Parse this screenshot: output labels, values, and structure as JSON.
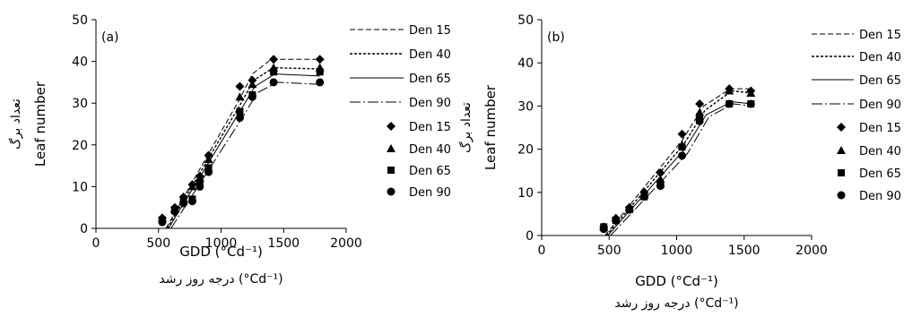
{
  "chart_data": [
    {
      "type": "scatter",
      "panel_label": "(a)",
      "xlabel": "GDD (°Cd⁻¹)",
      "xlabel_fa": "درجه روز رشد (°Cd⁻¹)",
      "ylabel": "Leaf number",
      "ylabel_fa": "تعداد برگ",
      "xlim": [
        0,
        2000
      ],
      "ylim": [
        0,
        50
      ],
      "xticks": [
        "0",
        "500",
        "1000",
        "1500",
        "2000"
      ],
      "yticks": [
        "0",
        "10",
        "20",
        "30",
        "40",
        "50"
      ],
      "grid": false,
      "legend": "right",
      "series": [
        {
          "name": "Den 15",
          "marker": "diamond",
          "x": [
            530,
            630,
            700,
            770,
            830,
            900,
            1150,
            1250,
            1420,
            1790
          ],
          "y": [
            2.5,
            5,
            7.5,
            10.5,
            12.5,
            17.5,
            34,
            35.5,
            40.5,
            40.5
          ],
          "fit": [
            [
              560,
              0
            ],
            [
              1150,
              31
            ],
            [
              1250,
              37
            ],
            [
              1400,
              40.5
            ],
            [
              1790,
              40.5
            ]
          ]
        },
        {
          "name": "Den 40",
          "marker": "triangle",
          "x": [
            530,
            630,
            700,
            770,
            830,
            900,
            1150,
            1250,
            1420,
            1790
          ],
          "y": [
            2.5,
            4.5,
            7,
            10,
            12,
            16.5,
            31.5,
            34.5,
            38.5,
            38.5
          ],
          "fit": [
            [
              570,
              0
            ],
            [
              1160,
              30
            ],
            [
              1260,
              35.5
            ],
            [
              1420,
              38.5
            ],
            [
              1790,
              38.2
            ]
          ]
        },
        {
          "name": "Den 65",
          "marker": "square",
          "x": [
            530,
            630,
            700,
            770,
            830,
            900,
            1150,
            1250,
            1420,
            1790
          ],
          "y": [
            2,
            4.5,
            6.5,
            7,
            11,
            14.5,
            28,
            32,
            37.5,
            37.5
          ],
          "fit": [
            [
              580,
              0
            ],
            [
              1170,
              29
            ],
            [
              1270,
              34
            ],
            [
              1430,
              37
            ],
            [
              1790,
              36.5
            ]
          ]
        },
        {
          "name": "Den 90",
          "marker": "circle",
          "x": [
            530,
            630,
            700,
            770,
            830,
            900,
            1150,
            1250,
            1420,
            1790
          ],
          "y": [
            1.5,
            4,
            6,
            6.5,
            10,
            13.5,
            26.5,
            31.5,
            35,
            35
          ],
          "fit": [
            [
              600,
              0
            ],
            [
              1180,
              27
            ],
            [
              1290,
              32.5
            ],
            [
              1450,
              35
            ],
            [
              1790,
              34.5
            ]
          ]
        }
      ]
    },
    {
      "type": "scatter",
      "panel_label": "(b)",
      "xlabel": "GDD (°Cd⁻¹)",
      "xlabel_fa": "درجه روز رشد (°Cd⁻¹)",
      "ylabel": "Leaf number",
      "ylabel_fa": "تعداد برگ",
      "xlim": [
        0,
        2000
      ],
      "ylim": [
        0,
        50
      ],
      "xticks": [
        "0",
        "500",
        "1000",
        "1500",
        "2000"
      ],
      "yticks": [
        "0",
        "10",
        "20",
        "30",
        "40",
        "50"
      ],
      "grid": false,
      "legend": "right",
      "series": [
        {
          "name": "Den 15",
          "marker": "diamond",
          "x": [
            460,
            550,
            650,
            760,
            880,
            1040,
            1170,
            1390,
            1550
          ],
          "y": [
            2,
            4,
            6.5,
            10,
            14.5,
            23.5,
            30.5,
            34,
            33.5
          ],
          "fit": [
            [
              470,
              0
            ],
            [
              1040,
              22
            ],
            [
              1200,
              30
            ],
            [
              1400,
              34
            ],
            [
              1560,
              34
            ]
          ]
        },
        {
          "name": "Den 40",
          "marker": "triangle",
          "x": [
            460,
            550,
            650,
            760,
            880,
            1040,
            1170,
            1390,
            1550
          ],
          "y": [
            2,
            4,
            6.5,
            9.5,
            13,
            21,
            28.5,
            33.5,
            33
          ],
          "fit": [
            [
              480,
              0
            ],
            [
              1050,
              21
            ],
            [
              1210,
              29
            ],
            [
              1410,
              33.5
            ],
            [
              1560,
              33
            ]
          ]
        },
        {
          "name": "Den 65",
          "marker": "square",
          "x": [
            460,
            550,
            650,
            760,
            880,
            1040,
            1170,
            1390,
            1550
          ],
          "y": [
            2,
            3.5,
            6,
            9,
            12,
            20.5,
            27.5,
            30.5,
            30.5
          ],
          "fit": [
            [
              490,
              0
            ],
            [
              1060,
              20
            ],
            [
              1220,
              28
            ],
            [
              1410,
              31
            ],
            [
              1560,
              30.5
            ]
          ]
        },
        {
          "name": "Den 90",
          "marker": "circle",
          "x": [
            460,
            550,
            650,
            760,
            880,
            1040,
            1170,
            1390,
            1550
          ],
          "y": [
            1.5,
            3.5,
            6,
            9,
            11.5,
            18.5,
            26.5,
            30.5,
            30.5
          ],
          "fit": [
            [
              510,
              0
            ],
            [
              1080,
              19
            ],
            [
              1240,
              27.5
            ],
            [
              1420,
              30.5
            ],
            [
              1560,
              30
            ]
          ]
        }
      ]
    }
  ]
}
